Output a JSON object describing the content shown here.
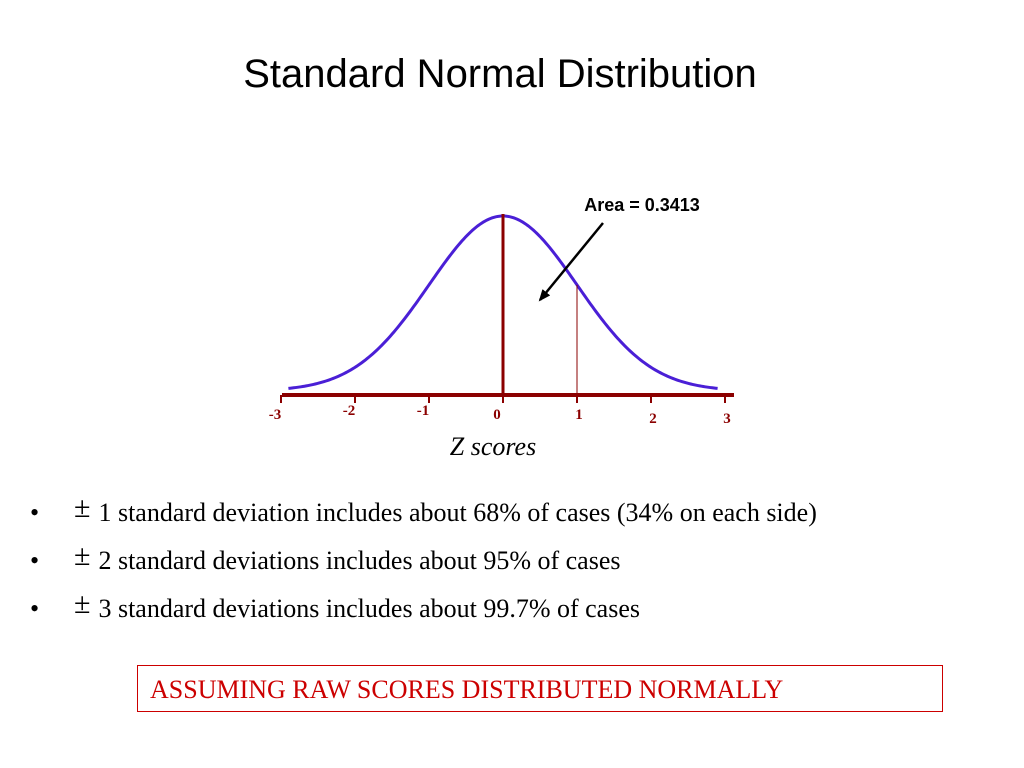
{
  "title": "Standard Normal Distribution",
  "chart_data": {
    "type": "line",
    "xlabel": "Z scores",
    "ylabel": "",
    "x_ticks": [
      "-3",
      "-2",
      "-1",
      "0",
      "1",
      "2",
      "3"
    ],
    "xlim": [
      -3,
      3
    ],
    "curve": "standard normal density",
    "marked_lines": [
      0,
      1
    ],
    "annotation": "Area = 0.3413",
    "shaded_interval": [
      0,
      1
    ],
    "area_value": 0.3413,
    "grid": false,
    "colors": {
      "curve": "#4a1fd6",
      "axis": "#8b0000",
      "lines": "#8b0000",
      "tick_labels": "#8b0000"
    }
  },
  "bullets": [
    {
      "symbol": "±",
      "text": "1 standard deviation includes about 68% of cases (34% on each side)"
    },
    {
      "symbol": "±",
      "text": "2 standard deviations includes about 95% of cases"
    },
    {
      "symbol": "±",
      "text": "3 standard deviations includes about 99.7% of cases"
    }
  ],
  "note": "ASSUMING RAW SCORES DISTRIBUTED NORMALLY"
}
